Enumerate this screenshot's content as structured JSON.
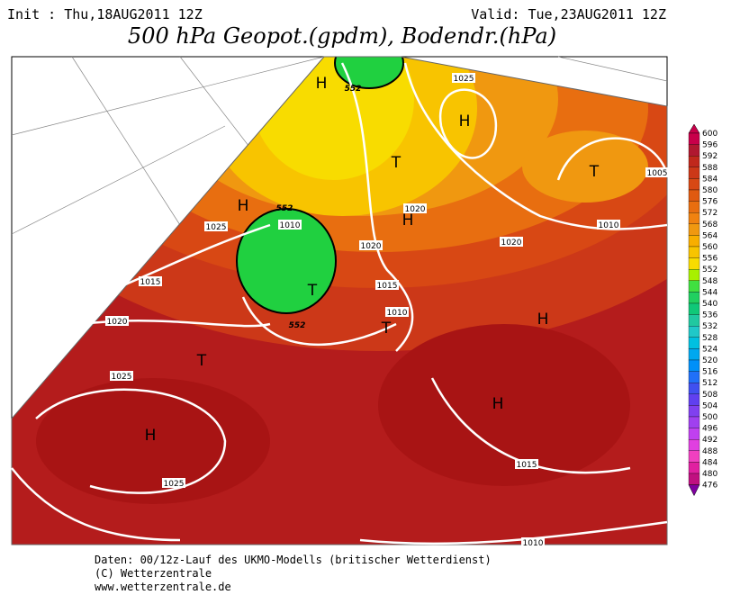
{
  "header": {
    "init": "Init : Thu,18AUG2011 12Z",
    "valid": "Valid: Tue,23AUG2011 12Z",
    "title": "500 hPa Geopot.(gpdm), Bodendr.(hPa)"
  },
  "map": {
    "pressure_centers": [
      "H",
      "H",
      "T",
      "H",
      "T",
      "T",
      "H",
      "T",
      "H",
      "H",
      "T"
    ],
    "isobar_labels": [
      "1025",
      "1025",
      "1015",
      "1020",
      "1025",
      "1020",
      "1015",
      "1010",
      "1010",
      "1020",
      "1020",
      "1010",
      "1005",
      "1015",
      "1025",
      "1010"
    ],
    "contour_labels": [
      "552",
      "552",
      "552"
    ]
  },
  "colorbar": {
    "levels": [
      600,
      596,
      592,
      588,
      584,
      580,
      576,
      572,
      568,
      564,
      560,
      556,
      552,
      548,
      544,
      540,
      536,
      532,
      528,
      524,
      520,
      516,
      512,
      508,
      504,
      500,
      496,
      492,
      488,
      484,
      480,
      476
    ],
    "colors": [
      "#c8004a",
      "#b01830",
      "#c0281c",
      "#cc3818",
      "#d84814",
      "#e05a10",
      "#e86e10",
      "#f08210",
      "#f09810",
      "#f8ae00",
      "#f8c400",
      "#f8dc00",
      "#a8f000",
      "#40e040",
      "#20d060",
      "#10c878",
      "#20c8a0",
      "#20c8c8",
      "#00c0e0",
      "#00a8f0",
      "#0090f8",
      "#2070f8",
      "#4050f0",
      "#6040f0",
      "#8040f0",
      "#a040f0",
      "#c040f0",
      "#e040e0",
      "#f040c0",
      "#e020a0",
      "#c01080",
      "#8000a0"
    ]
  },
  "footer": {
    "line1": "Daten: 00/12z-Lauf des UKMO-Modells (britischer Wetterdienst)",
    "line2": "(C) Wetterzentrale",
    "line3": "www.wetterzentrale.de"
  }
}
